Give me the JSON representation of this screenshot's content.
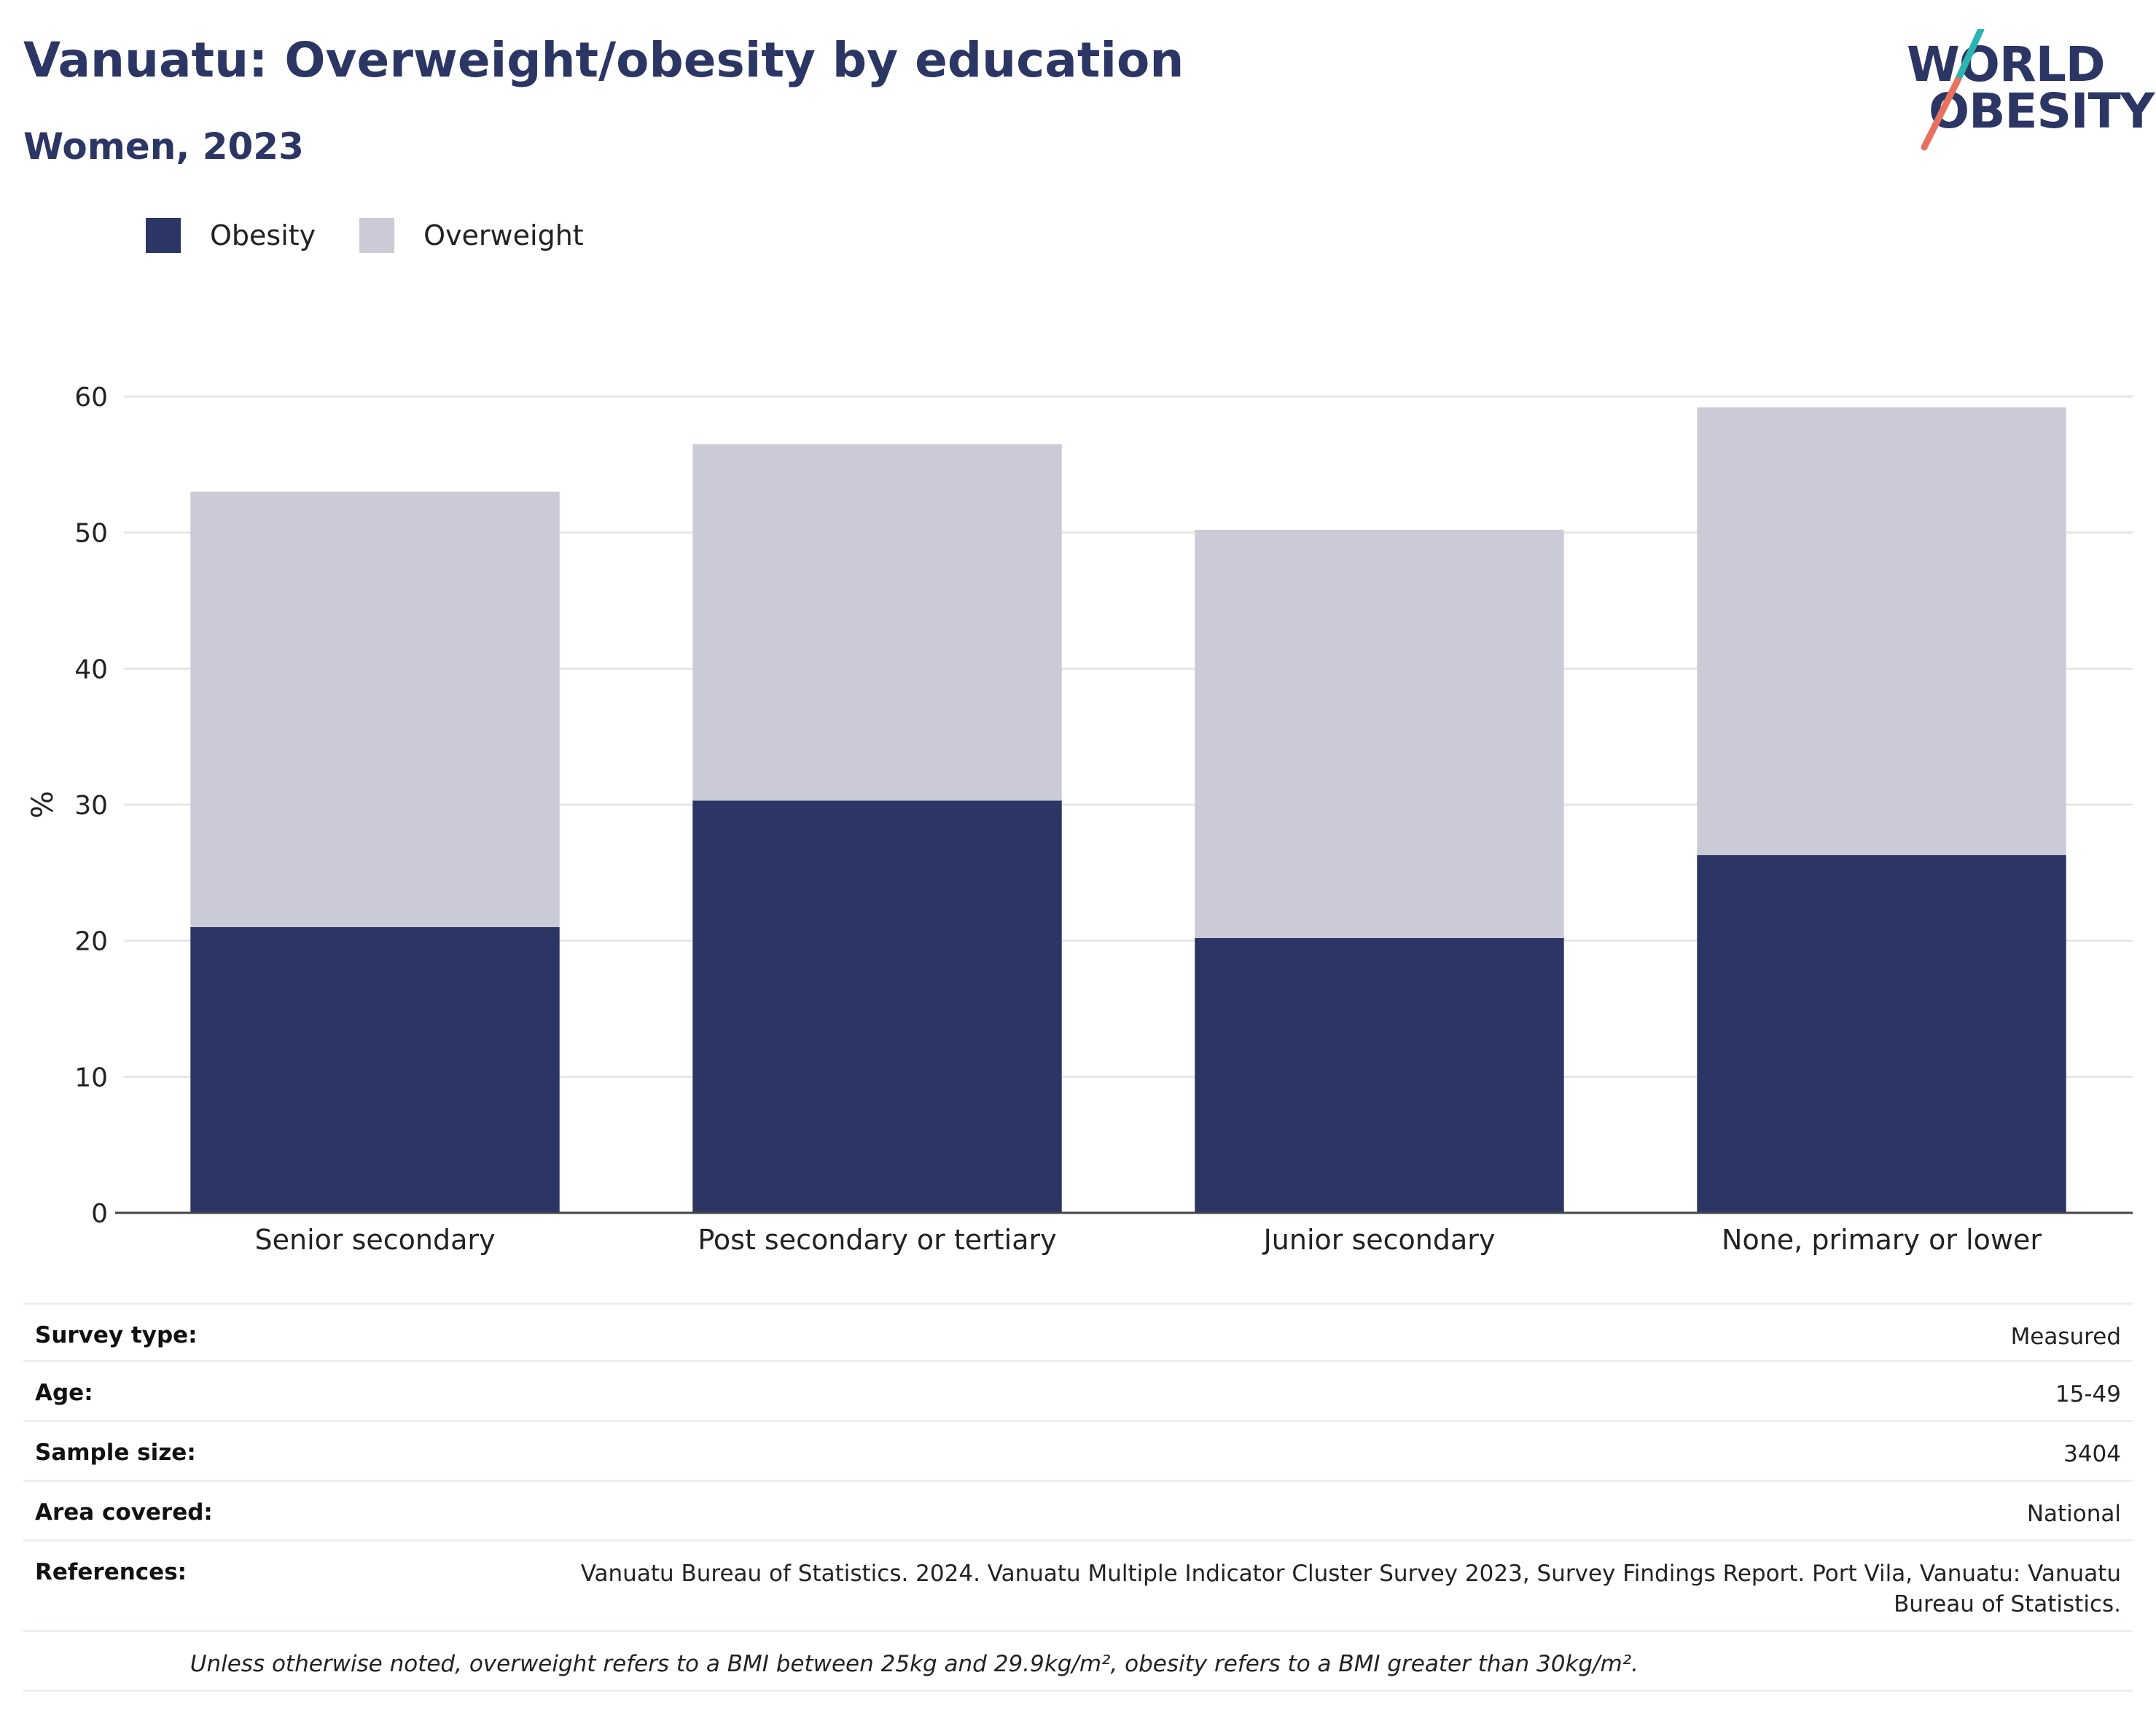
{
  "header": {
    "title": "Vanuatu: Overweight/obesity by education",
    "subtitle": "Women, 2023"
  },
  "logo": {
    "line1": "WORLD",
    "line2": "OBESITY",
    "colors": {
      "text": "#2b3664",
      "slash_top": "#2ab5b0",
      "slash_bottom": "#e8705e"
    }
  },
  "colors": {
    "obesity": "#2b3664",
    "overweight": "#cacbd7",
    "grid": "#e6e6ec",
    "axis": "#444444",
    "text": "#222222"
  },
  "chart_data": {
    "type": "bar",
    "stacked": true,
    "categories": [
      "Senior secondary",
      "Post secondary or tertiary",
      "Junior secondary",
      "None, primary or lower"
    ],
    "series": [
      {
        "name": "Obesity",
        "values": [
          21.0,
          30.3,
          20.2,
          26.3
        ]
      },
      {
        "name": "Overweight",
        "values": [
          32.0,
          26.2,
          30.0,
          32.9
        ]
      }
    ],
    "ylabel": "%",
    "ylim": [
      0,
      60
    ],
    "yticks": [
      "0",
      "10",
      "20",
      "30",
      "40",
      "50",
      "60"
    ],
    "grid": true,
    "legend": "top-left"
  },
  "details": {
    "survey_type": {
      "label": "Survey type:",
      "value": "Measured"
    },
    "age": {
      "label": "Age:",
      "value": "15-49"
    },
    "sample_size": {
      "label": "Sample size:",
      "value": "3404"
    },
    "area_covered": {
      "label": "Area covered:",
      "value": "National"
    },
    "references": {
      "label": "References:",
      "value": "Vanuatu Bureau of Statistics. 2024. Vanuatu Multiple Indicator Cluster Survey 2023, Survey Findings Report. Port Vila, Vanuatu: Vanuatu Bureau of Statistics."
    },
    "note": "Unless otherwise noted, overweight refers to a BMI between 25kg and 29.9kg/m², obesity refers to a BMI greater than 30kg/m²."
  }
}
